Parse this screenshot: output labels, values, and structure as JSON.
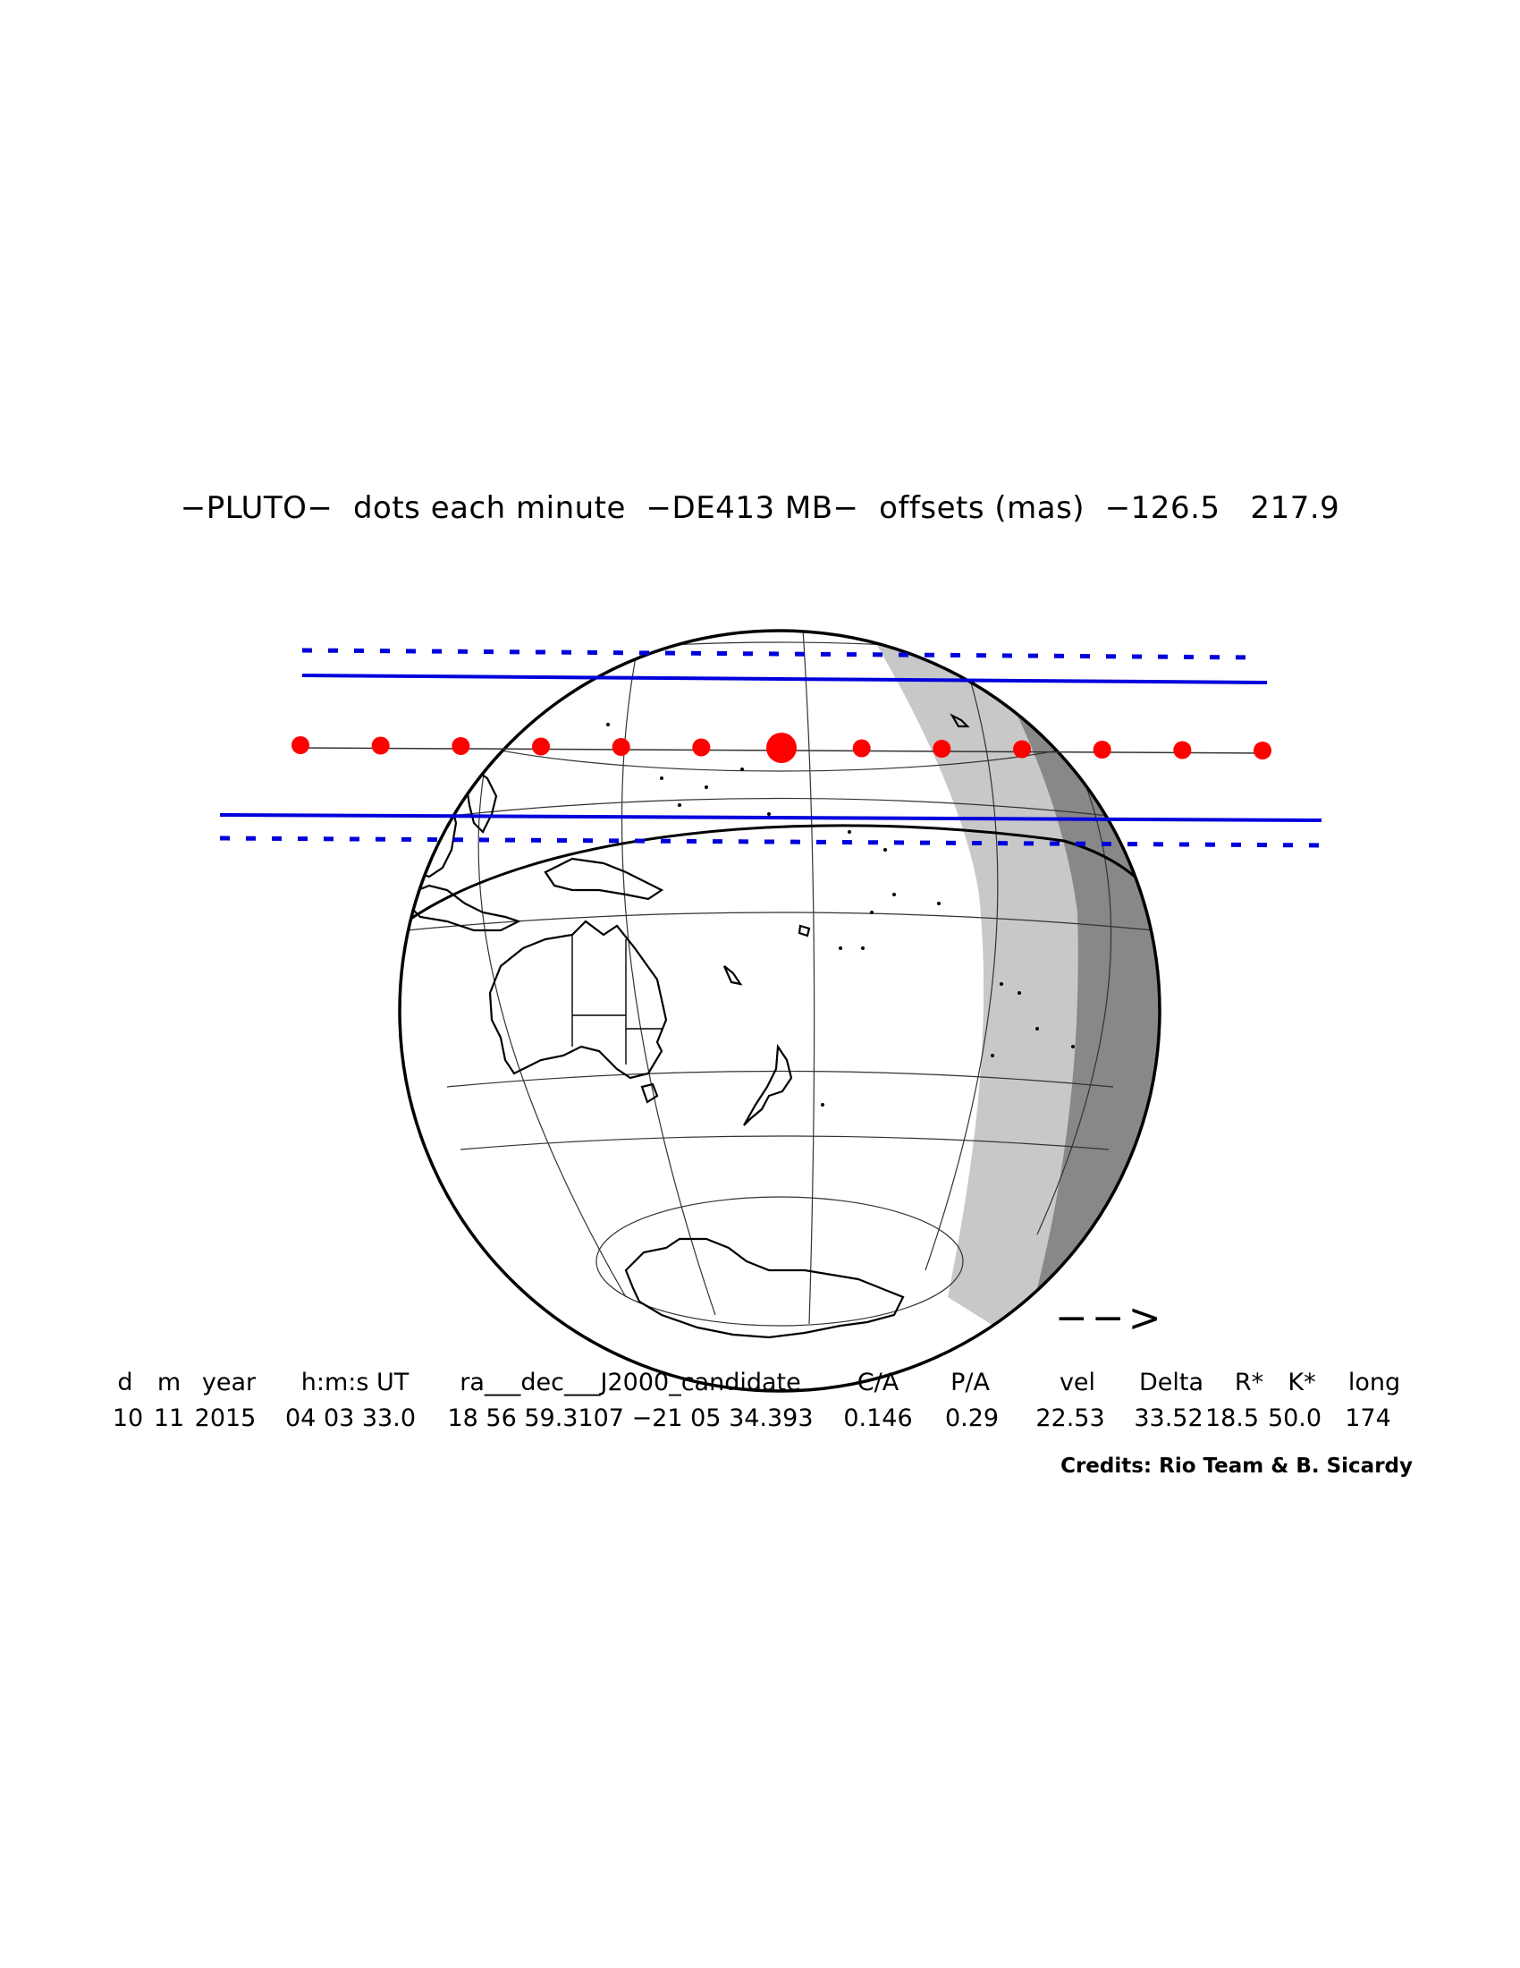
{
  "title": "−PLUTO−  dots each minute  −DE413 MB−  offsets (mas)  −126.5   217.9",
  "colors": {
    "shadow_band": "#0000dd",
    "center_track": "#ff0000",
    "night": "#888888",
    "twilight": "#c8c8c8",
    "coastline": "#000000"
  },
  "direction_arrow": "−−>",
  "track_dot_count": 13,
  "center_dot_index": 6,
  "table": {
    "headers": [
      "d",
      "m",
      "year",
      "h:m:s UT",
      "ra___dec___J2000_candidate",
      "C/A",
      "P/A",
      "vel",
      "Delta",
      "R*",
      "K*",
      "long"
    ],
    "values": [
      "10",
      "11",
      "2015",
      "04 03 33.0",
      "18 56 59.3107 −21 05 34.393",
      "0.146",
      "0.29",
      "22.53",
      "33.52",
      "18.5",
      "50.0",
      "174"
    ]
  },
  "credits": "Credits: Rio Team & B. Sicardy"
}
